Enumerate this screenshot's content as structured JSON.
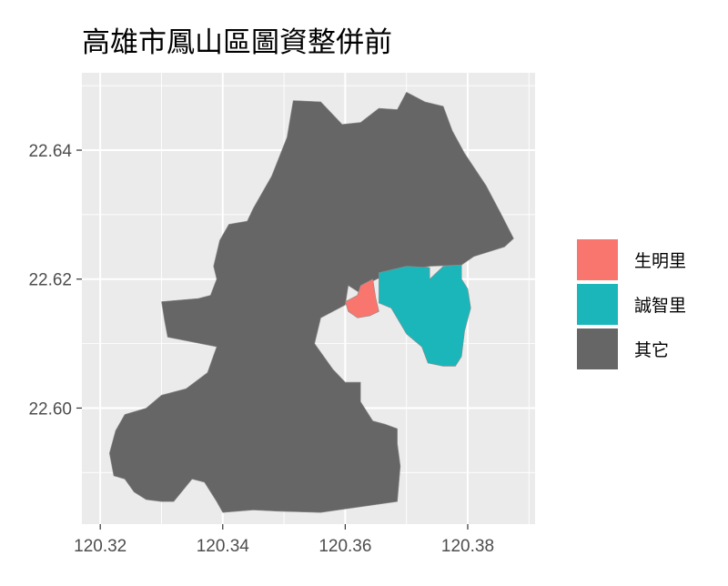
{
  "chart_data": {
    "type": "map",
    "title": "高雄市鳳山區圖資整併前",
    "xlabel": "",
    "ylabel": "",
    "x_ticks": [
      120.32,
      120.34,
      120.36,
      120.38
    ],
    "y_ticks": [
      22.6,
      22.62,
      22.64
    ],
    "x_tick_labels": [
      "120.32",
      "120.34",
      "120.36",
      "120.38"
    ],
    "y_tick_labels": [
      "22.60",
      "22.62",
      "22.64"
    ],
    "xlim": [
      120.317,
      120.391
    ],
    "ylim": [
      22.582,
      22.652
    ],
    "grid": true,
    "legend_position": "right",
    "legend": [
      {
        "label": "生明里",
        "color": "#F8766D"
      },
      {
        "label": "誠智里",
        "color": "#1BB6BA"
      },
      {
        "label": "其它",
        "color": "#666666"
      }
    ],
    "regions": [
      {
        "name": "其它",
        "fill": "#666666",
        "polygon": [
          [
            120.344,
            22.629
          ],
          [
            120.345,
            22.631
          ],
          [
            120.348,
            22.636
          ],
          [
            120.3505,
            22.642
          ],
          [
            120.3515,
            22.6477
          ],
          [
            120.356,
            22.6475
          ],
          [
            120.3595,
            22.644
          ],
          [
            120.3625,
            22.6443
          ],
          [
            120.3655,
            22.6465
          ],
          [
            120.3685,
            22.6463
          ],
          [
            120.37,
            22.649
          ],
          [
            120.373,
            22.6475
          ],
          [
            120.376,
            22.6468
          ],
          [
            120.3775,
            22.643
          ],
          [
            120.3795,
            22.6395
          ],
          [
            120.383,
            22.6345
          ],
          [
            120.3855,
            22.63
          ],
          [
            120.3875,
            22.6263
          ],
          [
            120.386,
            22.625
          ],
          [
            120.381,
            22.6235
          ],
          [
            120.379,
            22.6222
          ],
          [
            120.3738,
            22.622
          ],
          [
            120.3675,
            22.621
          ],
          [
            120.364,
            22.6195
          ],
          [
            120.363,
            22.6175
          ],
          [
            120.3605,
            22.619
          ],
          [
            120.36,
            22.616
          ],
          [
            120.356,
            22.614
          ],
          [
            120.355,
            22.61
          ],
          [
            120.358,
            22.606
          ],
          [
            120.36,
            22.604
          ],
          [
            120.3625,
            22.604
          ],
          [
            120.3625,
            22.601
          ],
          [
            120.3645,
            22.598
          ],
          [
            120.3665,
            22.5975
          ],
          [
            120.3685,
            22.5968
          ],
          [
            120.3685,
            22.5945
          ],
          [
            120.369,
            22.591
          ],
          [
            120.3685,
            22.5855
          ],
          [
            120.356,
            22.5838
          ],
          [
            120.349,
            22.584
          ],
          [
            120.345,
            22.5842
          ],
          [
            120.34,
            22.5838
          ],
          [
            120.339,
            22.5855
          ],
          [
            120.337,
            22.5885
          ],
          [
            120.335,
            22.589
          ],
          [
            120.332,
            22.5855
          ],
          [
            120.33,
            22.5855
          ],
          [
            120.3275,
            22.5858
          ],
          [
            120.3255,
            22.587
          ],
          [
            120.324,
            22.589
          ],
          [
            120.3222,
            22.5895
          ],
          [
            120.3215,
            22.593
          ],
          [
            120.3225,
            22.5965
          ],
          [
            120.324,
            22.599
          ],
          [
            120.3275,
            22.6
          ],
          [
            120.33,
            22.602
          ],
          [
            120.334,
            22.603
          ],
          [
            120.3375,
            22.6055
          ],
          [
            120.339,
            22.6095
          ],
          [
            120.331,
            22.611
          ],
          [
            120.3305,
            22.6135
          ],
          [
            120.33,
            22.6165
          ],
          [
            120.336,
            22.617
          ],
          [
            120.338,
            22.6175
          ],
          [
            120.339,
            22.62
          ],
          [
            120.3385,
            22.622
          ],
          [
            120.3395,
            22.626
          ],
          [
            120.341,
            22.6285
          ],
          [
            120.344,
            22.629
          ]
        ]
      },
      {
        "name": "生明里",
        "fill": "#F8766D",
        "polygon": [
          [
            120.3625,
            22.619
          ],
          [
            120.3645,
            22.62
          ],
          [
            120.365,
            22.617
          ],
          [
            120.3655,
            22.615
          ],
          [
            120.364,
            22.6143
          ],
          [
            120.362,
            22.614
          ],
          [
            120.3605,
            22.615
          ],
          [
            120.36,
            22.6165
          ],
          [
            120.362,
            22.6175
          ],
          [
            120.3625,
            22.619
          ]
        ]
      },
      {
        "name": "誠智里",
        "fill": "#1BB6BA",
        "polygon": [
          [
            120.3655,
            22.621
          ],
          [
            120.37,
            22.622
          ],
          [
            120.3738,
            22.6218
          ],
          [
            120.3738,
            22.62
          ],
          [
            120.376,
            22.622
          ],
          [
            120.379,
            22.6222
          ],
          [
            120.379,
            22.62
          ],
          [
            120.38,
            22.6185
          ],
          [
            120.3805,
            22.6155
          ],
          [
            120.3795,
            22.612
          ],
          [
            120.379,
            22.608
          ],
          [
            120.378,
            22.6065
          ],
          [
            120.376,
            22.6065
          ],
          [
            120.3735,
            22.607
          ],
          [
            120.3725,
            22.6095
          ],
          [
            120.37,
            22.6115
          ],
          [
            120.3675,
            22.6155
          ],
          [
            120.3655,
            22.6163
          ],
          [
            120.3655,
            22.6185
          ],
          [
            120.3655,
            22.621
          ]
        ]
      }
    ]
  }
}
